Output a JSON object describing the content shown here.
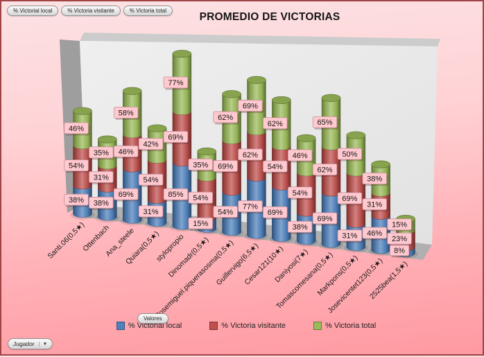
{
  "title": "PROMEDIO DE VICTORIAS",
  "filters": {
    "buttons": [
      {
        "label": "% Victorial local"
      },
      {
        "label": "% Victoria visitante"
      },
      {
        "label": "% Victoria total"
      }
    ]
  },
  "field_buttons": {
    "values_label": "Valores",
    "axis_label": "Jugador",
    "dropdown_icon": "▼"
  },
  "chart_data": {
    "type": "bar",
    "subtype": "stacked-cylinder-3d",
    "title": "PROMEDIO DE VICTORIAS",
    "categories": [
      "Santi.06(0,5★)",
      "Ottenbach",
      "Ana_steele",
      "Quiara(0,5★)",
      "stylopropio",
      "Dinomadr(0,5★)",
      "Josemiguel.piquerasosma(0,5★)",
      "Guillervigo(6,5★)",
      "Cesar121(10★)",
      "Daniyosi(7★)",
      "Tomascomesana(0,5★)",
      "Markpons(0,5★)",
      "Josevicentet123(0,5★)",
      "2525bea(1,5★)"
    ],
    "series": [
      {
        "name": "% Victorial local",
        "color": "#4F81BD",
        "values": [
          38,
          38,
          69,
          31,
          85,
          15,
          54,
          77,
          69,
          38,
          69,
          31,
          46,
          8
        ]
      },
      {
        "name": "% Victoria visitante",
        "color": "#C0504D",
        "values": [
          54,
          31,
          46,
          54,
          69,
          54,
          69,
          62,
          54,
          54,
          62,
          69,
          31,
          23
        ]
      },
      {
        "name": "% Victoria total",
        "color": "#9BBB59",
        "values": [
          46,
          35,
          58,
          42,
          77,
          35,
          62,
          69,
          62,
          46,
          65,
          50,
          38,
          15
        ]
      }
    ],
    "data_label_format": "0%",
    "data_label_bg": "#ffc9cf",
    "legend_position": "bottom",
    "value_axis_visible": false,
    "gridlines": false
  }
}
